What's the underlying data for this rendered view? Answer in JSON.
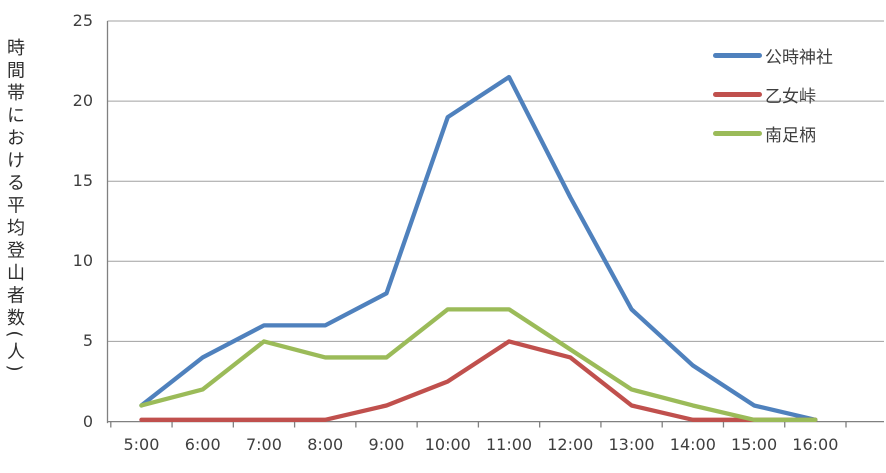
{
  "chart_data": {
    "type": "line",
    "title": "",
    "xlabel": "",
    "ylabel": "時間帯における平均登山者数(人)",
    "categories": [
      "5:00",
      "6:00",
      "7:00",
      "8:00",
      "9:00",
      "10:00",
      "11:00",
      "12:00",
      "13:00",
      "14:00",
      "15:00",
      "16:00"
    ],
    "series": [
      {
        "name": "公時神社",
        "color": "#4F81BD",
        "values": [
          1,
          4,
          6,
          6,
          8,
          19,
          21.5,
          14,
          7,
          3.5,
          1,
          0
        ]
      },
      {
        "name": "乙女峠",
        "color": "#C0504D",
        "values": [
          0,
          0,
          0,
          0,
          1,
          2.5,
          5,
          4,
          1,
          0,
          0,
          0
        ]
      },
      {
        "name": "南足柄",
        "color": "#9BBB59",
        "values": [
          1,
          2,
          5,
          4,
          4,
          7,
          7,
          4.5,
          2,
          1,
          0,
          0
        ]
      }
    ],
    "ylim": [
      0,
      25
    ],
    "yticks": [
      0,
      5,
      10,
      15,
      20,
      25
    ],
    "grid": true,
    "legend_position": "inside-top-right"
  },
  "colors": {
    "background": "#FFFFFF",
    "axis": "#808080",
    "gridline": "#A0A0A0",
    "text": "#3F3F3F"
  }
}
